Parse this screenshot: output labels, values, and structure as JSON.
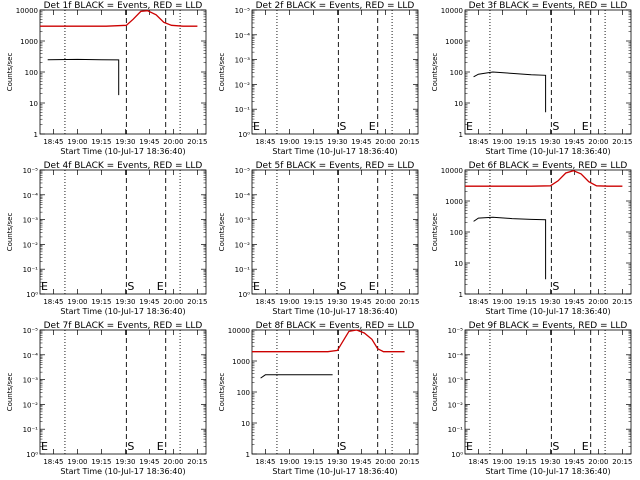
{
  "chart_data": [
    {
      "type": "line",
      "title": "Det 1f BLACK = Events, RED = LLD",
      "xlabel": "Start Time (10-Jul-17 18:36:40)",
      "ylabel": "Counts/sec",
      "yscale": "log",
      "yticks": [
        "1",
        "10",
        "100",
        "1000",
        "10000"
      ],
      "xticks": [
        "18:45",
        "19:00",
        "19:15",
        "19:30",
        "19:45",
        "20:00",
        "20:15"
      ],
      "series": [
        {
          "color": "#000000",
          "points": [
            [
              18.69,
              250
            ],
            [
              19.0,
              255
            ],
            [
              19.25,
              248
            ],
            [
              19.43,
              245
            ],
            [
              19.43,
              18
            ]
          ]
        },
        {
          "color": "#cc0000",
          "points": [
            [
              18.61,
              3000
            ],
            [
              18.9,
              3000
            ],
            [
              19.3,
              3000
            ],
            [
              19.51,
              3200
            ],
            [
              19.58,
              5000
            ],
            [
              19.66,
              9000
            ],
            [
              19.73,
              9500
            ],
            [
              19.82,
              7000
            ],
            [
              19.9,
              4000
            ],
            [
              19.98,
              3200
            ],
            [
              20.1,
              3000
            ],
            [
              20.25,
              3000
            ]
          ]
        }
      ],
      "markers": {
        "S": "",
        "E": ""
      },
      "dotted": [
        18.87,
        20.07
      ],
      "dashed": [
        19.51,
        19.92
      ]
    },
    {
      "type": "line",
      "title": "Det 2f BLACK = Events, RED = LLD",
      "xlabel": "Start Time (10-Jul-17 18:36:40)",
      "ylabel": "Counts/sec",
      "yscale": "log",
      "yticks": [
        "10⁰",
        "10⁻¹",
        "10⁻²",
        "10⁻³",
        "10⁻⁴",
        "10⁻⁵"
      ],
      "xticks": [
        "18:45",
        "19:00",
        "19:15",
        "19:30",
        "19:45",
        "20:00",
        "20:15"
      ],
      "series": [],
      "markers": {
        "S": "S",
        "E": "E"
      },
      "dotted": [
        18.87,
        20.07
      ],
      "dashed": [
        19.51,
        19.92
      ]
    },
    {
      "type": "line",
      "title": "Det 3f BLACK = Events, RED = LLD",
      "xlabel": "Start Time (10-Jul-17 18:36:40)",
      "ylabel": "Counts/sec",
      "yscale": "log",
      "yticks": [
        "1",
        "10",
        "100",
        "1000",
        "10000"
      ],
      "xticks": [
        "18:45",
        "19:00",
        "19:15",
        "19:30",
        "19:45",
        "20:00",
        "20:15"
      ],
      "series": [
        {
          "color": "#000000",
          "points": [
            [
              18.7,
              70
            ],
            [
              18.75,
              85
            ],
            [
              18.9,
              100
            ],
            [
              19.1,
              90
            ],
            [
              19.3,
              82
            ],
            [
              19.45,
              78
            ],
            [
              19.45,
              5
            ]
          ]
        }
      ],
      "markers": {
        "S": "S",
        "E": "E"
      },
      "dotted": [
        18.87,
        20.07
      ],
      "dashed": [
        19.51,
        19.92
      ]
    },
    {
      "type": "line",
      "title": "Det 4f BLACK = Events, RED = LLD",
      "xlabel": "Start Time (10-Jul-17 18:36:40)",
      "ylabel": "Counts/sec",
      "yscale": "log",
      "yticks": [
        "10⁰",
        "10⁻¹",
        "10⁻²",
        "10⁻³",
        "10⁻⁴",
        "10⁻⁵"
      ],
      "xticks": [
        "18:45",
        "19:00",
        "19:15",
        "19:30",
        "19:45",
        "20:00",
        "20:15"
      ],
      "series": [],
      "markers": {
        "S": "S",
        "E": "E"
      },
      "dotted": [
        18.87,
        20.07
      ],
      "dashed": [
        19.51,
        19.92
      ]
    },
    {
      "type": "line",
      "title": "Det 5f BLACK = Events, RED = LLD",
      "xlabel": "Start Time (10-Jul-17 18:36:40)",
      "ylabel": "Counts/sec",
      "yscale": "log",
      "yticks": [
        "10⁰",
        "10⁻¹",
        "10⁻²",
        "10⁻³",
        "10⁻⁴",
        "10⁻⁵"
      ],
      "xticks": [
        "18:45",
        "19:00",
        "19:15",
        "19:30",
        "19:45",
        "20:00",
        "20:15"
      ],
      "series": [],
      "markers": {
        "S": "S",
        "E": "E"
      },
      "dotted": [
        18.87,
        20.07
      ],
      "dashed": [
        19.51,
        19.92
      ]
    },
    {
      "type": "line",
      "title": "Det 6f BLACK = Events, RED = LLD",
      "xlabel": "Start Time (10-Jul-17 18:36:40)",
      "ylabel": "Counts/sec",
      "yscale": "log",
      "yticks": [
        "1",
        "10",
        "100",
        "1000",
        "10000"
      ],
      "xticks": [
        "18:45",
        "19:00",
        "19:15",
        "19:30",
        "19:45",
        "20:00",
        "20:15"
      ],
      "series": [
        {
          "color": "#000000",
          "points": [
            [
              18.7,
              220
            ],
            [
              18.75,
              280
            ],
            [
              18.9,
              300
            ],
            [
              19.1,
              270
            ],
            [
              19.3,
              255
            ],
            [
              19.45,
              250
            ],
            [
              19.45,
              3
            ]
          ]
        },
        {
          "color": "#cc0000",
          "points": [
            [
              18.61,
              3000
            ],
            [
              18.9,
              3000
            ],
            [
              19.3,
              3000
            ],
            [
              19.5,
              3100
            ],
            [
              19.58,
              4500
            ],
            [
              19.66,
              8000
            ],
            [
              19.74,
              9500
            ],
            [
              19.82,
              7500
            ],
            [
              19.9,
              4200
            ],
            [
              19.98,
              3100
            ],
            [
              20.1,
              3000
            ],
            [
              20.25,
              3000
            ]
          ]
        }
      ],
      "markers": {
        "S": "S",
        "E": ""
      },
      "dotted": [
        18.87,
        20.07
      ],
      "dashed": [
        19.51,
        19.92
      ]
    },
    {
      "type": "line",
      "title": "Det 7f BLACK = Events, RED = LLD",
      "xlabel": "Start Time (10-Jul-17 18:36:40)",
      "ylabel": "Counts/sec",
      "yscale": "log",
      "yticks": [
        "10⁰",
        "10⁻¹",
        "10⁻²",
        "10⁻³",
        "10⁻⁴",
        "10⁻⁵"
      ],
      "xticks": [
        "18:45",
        "19:00",
        "19:15",
        "19:30",
        "19:45",
        "20:00",
        "20:15"
      ],
      "series": [],
      "markers": {
        "S": "S",
        "E": "E"
      },
      "dotted": [
        18.87,
        20.07
      ],
      "dashed": [
        19.51,
        19.92
      ]
    },
    {
      "type": "line",
      "title": "Det 8f BLACK = Events, RED = LLD",
      "xlabel": "Start Time (10-Jul-17 18:36:40)",
      "ylabel": "Counts/sec",
      "yscale": "log",
      "yticks": [
        "1",
        "10",
        "100",
        "1000",
        "10000"
      ],
      "xticks": [
        "18:45",
        "19:00",
        "19:15",
        "19:30",
        "19:45",
        "20:00",
        "20:15"
      ],
      "series": [
        {
          "color": "#000000",
          "points": [
            [
              18.7,
              280
            ],
            [
              18.75,
              360
            ],
            [
              19.0,
              360
            ],
            [
              19.25,
              360
            ],
            [
              19.45,
              360
            ]
          ]
        },
        {
          "color": "#cc0000",
          "points": [
            [
              18.61,
              2000
            ],
            [
              19.0,
              2000
            ],
            [
              19.4,
              2000
            ],
            [
              19.5,
              2200
            ],
            [
              19.56,
              4500
            ],
            [
              19.62,
              9000
            ],
            [
              19.7,
              10000
            ],
            [
              19.78,
              8000
            ],
            [
              19.86,
              5000
            ],
            [
              19.92,
              2500
            ],
            [
              19.98,
              2000
            ],
            [
              20.2,
              2000
            ]
          ]
        }
      ],
      "markers": {
        "S": "S",
        "E": ""
      },
      "dotted": [
        18.87,
        20.07
      ],
      "dashed": [
        19.51,
        19.92
      ]
    },
    {
      "type": "line",
      "title": "Det 9f BLACK = Events, RED = LLD",
      "xlabel": "Start Time (10-Jul-17 18:36:40)",
      "ylabel": "Counts/sec",
      "yscale": "log",
      "yticks": [
        "10⁰",
        "10⁻¹",
        "10⁻²",
        "10⁻³",
        "10⁻⁴",
        "10⁻⁵"
      ],
      "xticks": [
        "18:45",
        "19:00",
        "19:15",
        "19:30",
        "19:45",
        "20:00",
        "20:15"
      ],
      "series": [],
      "markers": {
        "S": "S",
        "E": "E"
      },
      "dotted": [
        18.87,
        20.07
      ],
      "dashed": [
        19.51,
        19.92
      ]
    }
  ]
}
